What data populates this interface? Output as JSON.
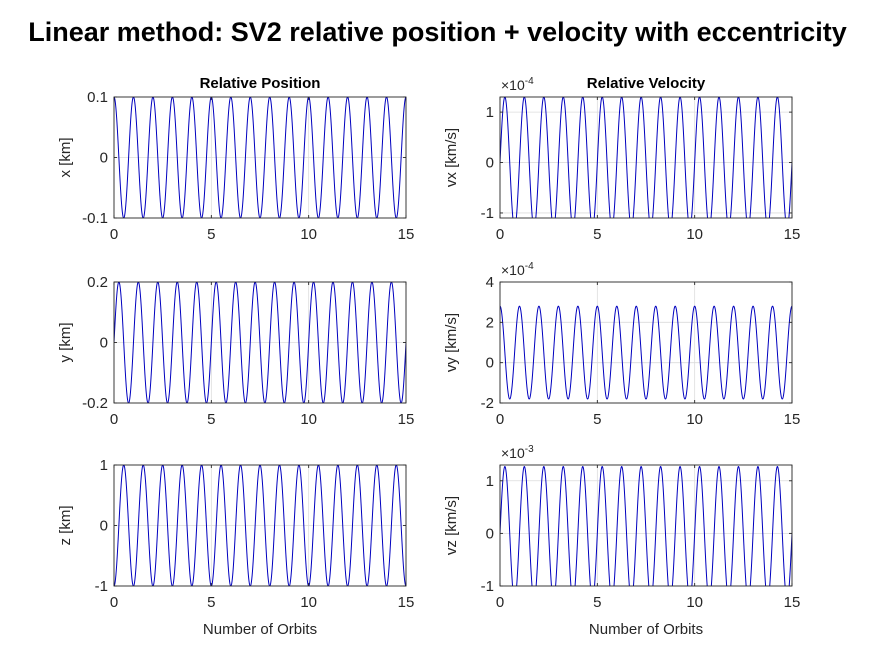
{
  "figure": {
    "suptitle": "Linear method: SV2 relative position + velocity with eccentricity"
  },
  "chart_data": [
    {
      "type": "line",
      "column_title": "Relative Position",
      "ylabel": "x [km]",
      "xlabel": "",
      "xlim": [
        0,
        15
      ],
      "ylim": [
        -0.1,
        0.1
      ],
      "xticks": [
        "0",
        "5",
        "10",
        "15"
      ],
      "yticks": [
        "-0.1",
        "0",
        "0.1"
      ],
      "ytick_values": [
        -0.1,
        0,
        0.1
      ],
      "exponent": "",
      "grid": true,
      "series": [
        {
          "amplitude": 0.1,
          "cycles_per_orbit": 1,
          "phase": 1.5708,
          "color": "#0000bf"
        }
      ]
    },
    {
      "type": "line",
      "column_title": "Relative Velocity",
      "ylabel": "vx [km/s]",
      "xlabel": "",
      "xlim": [
        0,
        15
      ],
      "ylim": [
        -1.1,
        1.3
      ],
      "xticks": [
        "0",
        "5",
        "10",
        "15"
      ],
      "yticks": [
        "-1",
        "0",
        "1"
      ],
      "ytick_values": [
        -1,
        0,
        1
      ],
      "exponent": "×10",
      "exponent_power": "-4",
      "grid": true,
      "series": [
        {
          "amplitude": 1.3,
          "cycles_per_orbit": 1,
          "phase": 0,
          "color": "#0000bf"
        }
      ]
    },
    {
      "type": "line",
      "column_title": "",
      "ylabel": "y [km]",
      "xlabel": "",
      "xlim": [
        0,
        15
      ],
      "ylim": [
        -0.2,
        0.2
      ],
      "xticks": [
        "0",
        "5",
        "10",
        "15"
      ],
      "yticks": [
        "-0.2",
        "0",
        "0.2"
      ],
      "ytick_values": [
        -0.2,
        0,
        0.2
      ],
      "exponent": "",
      "grid": true,
      "series": [
        {
          "amplitude": 0.2,
          "cycles_per_orbit": 1,
          "phase": 0,
          "color": "#0000bf"
        }
      ]
    },
    {
      "type": "line",
      "column_title": "",
      "ylabel": "vy [km/s]",
      "xlabel": "",
      "xlim": [
        0,
        15
      ],
      "ylim": [
        -2,
        4
      ],
      "xticks": [
        "0",
        "5",
        "10",
        "15"
      ],
      "yticks": [
        "-2",
        "0",
        "2",
        "4"
      ],
      "ytick_values": [
        -2,
        0,
        2,
        4
      ],
      "exponent": "×10",
      "exponent_power": "-4",
      "grid": true,
      "series": [
        {
          "amplitude": 2.3,
          "offset": 0.5,
          "cycles_per_orbit": 1,
          "phase": 1.5708,
          "color": "#0000bf"
        }
      ]
    },
    {
      "type": "line",
      "column_title": "",
      "ylabel": "z [km]",
      "xlabel": "Number of Orbits",
      "xlim": [
        0,
        15
      ],
      "ylim": [
        -1,
        1
      ],
      "xticks": [
        "0",
        "5",
        "10",
        "15"
      ],
      "yticks": [
        "-1",
        "0",
        "1"
      ],
      "ytick_values": [
        -1,
        0,
        1
      ],
      "exponent": "",
      "grid": true,
      "series": [
        {
          "amplitude": 1.0,
          "cycles_per_orbit": 1,
          "phase": -1.5708,
          "color": "#0000bf"
        }
      ]
    },
    {
      "type": "line",
      "column_title": "",
      "ylabel": "vz [km/s]",
      "xlabel": "Number of Orbits",
      "xlim": [
        0,
        15
      ],
      "ylim": [
        -1,
        1.3
      ],
      "xticks": [
        "0",
        "5",
        "10",
        "15"
      ],
      "yticks": [
        "-1",
        "0",
        "1"
      ],
      "ytick_values": [
        -1,
        0,
        1
      ],
      "exponent": "×10",
      "exponent_power": "-3",
      "grid": true,
      "series": [
        {
          "amplitude": 1.27,
          "cycles_per_orbit": 1,
          "phase": 0,
          "color": "#0000bf"
        }
      ]
    }
  ]
}
